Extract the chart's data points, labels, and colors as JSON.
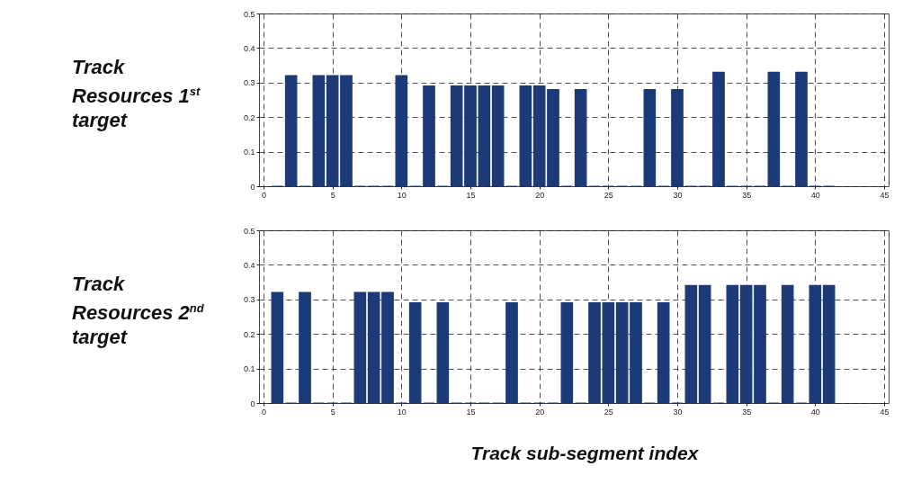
{
  "chart_data": [
    {
      "type": "bar",
      "title": "Track Resources 1$^{st}$ target",
      "x": [
        1,
        2,
        3,
        4,
        5,
        6,
        7,
        8,
        9,
        10,
        11,
        12,
        13,
        14,
        15,
        16,
        17,
        18,
        19,
        20,
        21,
        22,
        23,
        24,
        25,
        26,
        27,
        28,
        29,
        30,
        31,
        32,
        33,
        34,
        35,
        36,
        37,
        38,
        39,
        40,
        41
      ],
      "series": [
        {
          "color": "#1c3a78",
          "values": [
            0,
            0.32,
            0,
            0.32,
            0.32,
            0.32,
            0,
            0,
            0,
            0.32,
            0,
            0.29,
            0,
            0.29,
            0.29,
            0.29,
            0.29,
            0,
            0.29,
            0.29,
            0.28,
            0,
            0.28,
            0,
            0,
            0,
            0,
            0.28,
            0,
            0.28,
            0,
            0,
            0.33,
            0,
            0,
            0,
            0.33,
            0,
            0.33,
            0,
            0
          ]
        }
      ],
      "xlim": [
        0,
        45
      ],
      "xticks": [
        0,
        5,
        10,
        15,
        20,
        25,
        30,
        35,
        40,
        45
      ],
      "ylim": [
        0,
        0.5
      ],
      "yticks": [
        0,
        0.1,
        0.2,
        0.3,
        0.4,
        0.5
      ],
      "grid": true
    },
    {
      "type": "bar",
      "title": "Track Resources 2$^{nd}$ target",
      "xlabel": "Track sub-segment index",
      "x": [
        1,
        2,
        3,
        4,
        5,
        6,
        7,
        8,
        9,
        10,
        11,
        12,
        13,
        14,
        15,
        16,
        17,
        18,
        19,
        20,
        21,
        22,
        23,
        24,
        25,
        26,
        27,
        28,
        29,
        30,
        31,
        32,
        33,
        34,
        35,
        36,
        37,
        38,
        39,
        40,
        41
      ],
      "series": [
        {
          "color": "#1c3a78",
          "values": [
            0.32,
            0,
            0.32,
            0,
            0,
            0,
            0.32,
            0.32,
            0.32,
            0,
            0.29,
            0,
            0.29,
            0,
            0,
            0,
            0,
            0.29,
            0,
            0,
            0,
            0.29,
            0,
            0.29,
            0.29,
            0.29,
            0.29,
            0,
            0.29,
            0,
            0.34,
            0.34,
            0,
            0.34,
            0.34,
            0.34,
            0,
            0.34,
            0,
            0.34,
            0.34
          ]
        }
      ],
      "xlim": [
        0,
        45
      ],
      "xticks": [
        0,
        5,
        10,
        15,
        20,
        25,
        30,
        35,
        40,
        45
      ],
      "ylim": [
        0,
        0.5
      ],
      "yticks": [
        0,
        0.1,
        0.2,
        0.3,
        0.4,
        0.5
      ],
      "grid": true
    }
  ]
}
